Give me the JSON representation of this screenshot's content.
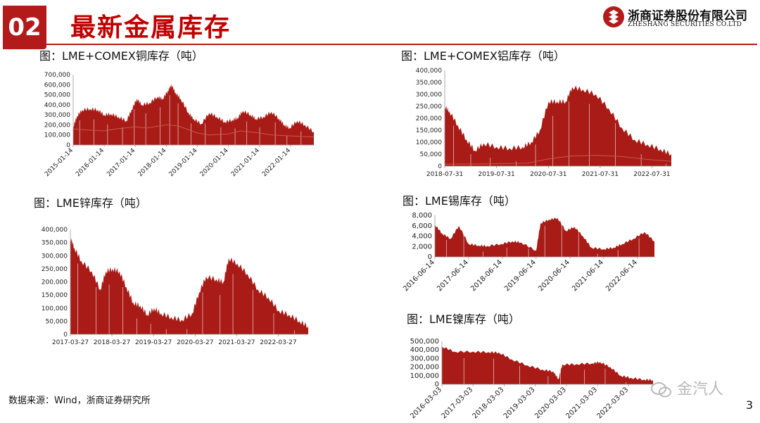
{
  "header": {
    "section_number": "02",
    "title": "最新金属库存",
    "logo_cn": "浙商证券股份有限公司",
    "logo_en": "ZHESHANG SECURITIES CO.LTD"
  },
  "footer": {
    "source": "数据来源：Wind，浙商证券研究所",
    "page_number": "3",
    "watermark": "金汽人"
  },
  "colors": {
    "brand": "#b31b1b",
    "area": "#a91b16",
    "line": "#c75a4a"
  },
  "chart_data": [
    {
      "id": "copper",
      "type": "area",
      "title": "图：LME+COMEX铜库存（吨）",
      "x_start": "2015-01-14",
      "x_end": "2022-10-14",
      "x_ticks": [
        "2015-01-14",
        "2016-01-14",
        "2017-01-14",
        "2018-01-14",
        "2019-01-14",
        "2020-01-14",
        "2021-01-14",
        "2022-01-14"
      ],
      "ylim": [
        0,
        700000
      ],
      "y_ticks": [
        "0",
        "100,000",
        "200,000",
        "300,000",
        "400,000",
        "500,000",
        "600,000",
        "700,000"
      ],
      "series": [
        {
          "style": "area",
          "values": [
            [
              "2015-01-14",
              180000
            ],
            [
              "2015-03-01",
              290000
            ],
            [
              "2015-05-01",
              350000
            ],
            [
              "2015-08-01",
              360000
            ],
            [
              "2015-11-01",
              350000
            ],
            [
              "2016-01-14",
              300000
            ],
            [
              "2016-04-01",
              310000
            ],
            [
              "2016-07-01",
              280000
            ],
            [
              "2016-10-01",
              240000
            ],
            [
              "2016-12-01",
              350000
            ],
            [
              "2017-02-01",
              460000
            ],
            [
              "2017-04-01",
              400000
            ],
            [
              "2017-07-01",
              420000
            ],
            [
              "2017-10-01",
              480000
            ],
            [
              "2017-12-01",
              460000
            ],
            [
              "2018-02-01",
              540000
            ],
            [
              "2018-03-15",
              600000
            ],
            [
              "2018-05-01",
              520000
            ],
            [
              "2018-07-01",
              460000
            ],
            [
              "2018-10-01",
              320000
            ],
            [
              "2018-12-01",
              260000
            ],
            [
              "2019-03-01",
              210000
            ],
            [
              "2019-06-01",
              320000
            ],
            [
              "2019-09-01",
              280000
            ],
            [
              "2019-12-01",
              230000
            ],
            [
              "2020-03-01",
              250000
            ],
            [
              "2020-05-01",
              270000
            ],
            [
              "2020-07-01",
              340000
            ],
            [
              "2020-10-01",
              300000
            ],
            [
              "2020-12-01",
              260000
            ],
            [
              "2021-03-01",
              280000
            ],
            [
              "2021-06-01",
              330000
            ],
            [
              "2021-09-01",
              260000
            ],
            [
              "2021-11-01",
              200000
            ],
            [
              "2022-01-01",
              170000
            ],
            [
              "2022-04-01",
              240000
            ],
            [
              "2022-07-01",
              200000
            ],
            [
              "2022-10-14",
              130000
            ]
          ]
        },
        {
          "style": "line",
          "values": [
            [
              "2015-01-14",
              160000
            ],
            [
              "2015-06-01",
              150000
            ],
            [
              "2016-01-14",
              140000
            ],
            [
              "2016-06-01",
              160000
            ],
            [
              "2017-01-14",
              180000
            ],
            [
              "2017-06-01",
              170000
            ],
            [
              "2018-01-14",
              200000
            ],
            [
              "2018-06-01",
              190000
            ],
            [
              "2019-01-14",
              120000
            ],
            [
              "2019-06-01",
              100000
            ],
            [
              "2020-01-14",
              110000
            ],
            [
              "2020-06-01",
              140000
            ],
            [
              "2021-01-14",
              120000
            ],
            [
              "2021-06-01",
              100000
            ],
            [
              "2022-01-14",
              90000
            ],
            [
              "2022-10-14",
              80000
            ]
          ]
        }
      ]
    },
    {
      "id": "aluminum",
      "type": "area",
      "title": "图：LME+COMEX铝库存（吨）",
      "x_start": "2018-07-31",
      "x_end": "2022-12-15",
      "x_ticks": [
        "2018-07-31",
        "2019-07-31",
        "2020-07-31",
        "2021-07-31",
        "2022-07-31"
      ],
      "ylim": [
        0,
        400000
      ],
      "y_ticks": [
        "0",
        "50,000",
        "100,000",
        "150,000",
        "200,000",
        "250,000",
        "300,000",
        "350,000",
        "400,000"
      ],
      "series": [
        {
          "style": "area",
          "values": [
            [
              "2018-07-31",
              250000
            ],
            [
              "2018-09-01",
              230000
            ],
            [
              "2018-11-01",
              170000
            ],
            [
              "2019-01-01",
              110000
            ],
            [
              "2019-03-01",
              65000
            ],
            [
              "2019-05-01",
              95000
            ],
            [
              "2019-08-01",
              80000
            ],
            [
              "2019-11-01",
              75000
            ],
            [
              "2020-02-01",
              80000
            ],
            [
              "2020-04-01",
              100000
            ],
            [
              "2020-06-01",
              150000
            ],
            [
              "2020-08-01",
              270000
            ],
            [
              "2020-10-01",
              270000
            ],
            [
              "2020-12-01",
              270000
            ],
            [
              "2021-01-15",
              330000
            ],
            [
              "2021-04-01",
              320000
            ],
            [
              "2021-07-01",
              300000
            ],
            [
              "2021-10-01",
              240000
            ],
            [
              "2022-01-01",
              160000
            ],
            [
              "2022-04-01",
              110000
            ],
            [
              "2022-07-01",
              90000
            ],
            [
              "2022-10-01",
              70000
            ],
            [
              "2022-12-15",
              50000
            ]
          ]
        },
        {
          "style": "line",
          "values": [
            [
              "2018-07-31",
              8000
            ],
            [
              "2019-07-31",
              10000
            ],
            [
              "2020-03-01",
              12000
            ],
            [
              "2020-08-01",
              30000
            ],
            [
              "2021-01-01",
              42000
            ],
            [
              "2021-07-01",
              45000
            ],
            [
              "2022-01-01",
              40000
            ],
            [
              "2022-07-01",
              28000
            ],
            [
              "2022-12-15",
              20000
            ]
          ]
        }
      ]
    },
    {
      "id": "zinc",
      "type": "area",
      "title": "图：LME锌库存（吨）",
      "x_start": "2017-03-27",
      "x_end": "2022-12-15",
      "x_ticks": [
        "2017-03-27",
        "2018-03-27",
        "2019-03-27",
        "2020-03-27",
        "2021-03-27",
        "2022-03-27"
      ],
      "ylim": [
        0,
        400000
      ],
      "y_ticks": [
        "0",
        "50,000",
        "100,000",
        "150,000",
        "200,000",
        "250,000",
        "300,000",
        "350,000",
        "400,000"
      ],
      "series": [
        {
          "style": "area",
          "values": [
            [
              "2017-03-27",
              370000
            ],
            [
              "2017-05-01",
              330000
            ],
            [
              "2017-07-01",
              280000
            ],
            [
              "2017-10-01",
              240000
            ],
            [
              "2017-12-15",
              170000
            ],
            [
              "2018-02-01",
              240000
            ],
            [
              "2018-04-01",
              250000
            ],
            [
              "2018-06-01",
              240000
            ],
            [
              "2018-08-01",
              180000
            ],
            [
              "2018-10-01",
              120000
            ],
            [
              "2018-12-01",
              110000
            ],
            [
              "2019-02-01",
              75000
            ],
            [
              "2019-04-01",
              100000
            ],
            [
              "2019-06-01",
              80000
            ],
            [
              "2019-09-01",
              65000
            ],
            [
              "2019-12-01",
              55000
            ],
            [
              "2020-03-01",
              80000
            ],
            [
              "2020-05-01",
              160000
            ],
            [
              "2020-07-01",
              220000
            ],
            [
              "2020-10-01",
              210000
            ],
            [
              "2020-12-01",
              200000
            ],
            [
              "2021-01-15",
              290000
            ],
            [
              "2021-04-01",
              270000
            ],
            [
              "2021-07-01",
              230000
            ],
            [
              "2021-10-01",
              170000
            ],
            [
              "2022-01-01",
              140000
            ],
            [
              "2022-04-01",
              90000
            ],
            [
              "2022-07-01",
              75000
            ],
            [
              "2022-10-01",
              50000
            ],
            [
              "2022-12-15",
              30000
            ]
          ]
        }
      ]
    },
    {
      "id": "tin",
      "type": "area",
      "title": "图：LME锡库存（吨）",
      "x_start": "2016-06-14",
      "x_end": "2022-12-15",
      "x_ticks": [
        "2016-06-14",
        "2017-06-14",
        "2018-06-14",
        "2019-06-14",
        "2020-06-14",
        "2021-06-14",
        "2022-06-14"
      ],
      "ylim": [
        0,
        8000
      ],
      "y_ticks": [
        "0",
        "2,000",
        "4,000",
        "6,000",
        "8,000"
      ],
      "series": [
        {
          "style": "area",
          "values": [
            [
              "2016-06-14",
              6200
            ],
            [
              "2016-09-01",
              4500
            ],
            [
              "2016-12-01",
              3500
            ],
            [
              "2017-03-01",
              6000
            ],
            [
              "2017-06-14",
              2500
            ],
            [
              "2017-10-01",
              2200
            ],
            [
              "2018-01-01",
              2100
            ],
            [
              "2018-06-01",
              2500
            ],
            [
              "2018-10-01",
              3000
            ],
            [
              "2019-01-01",
              2800
            ],
            [
              "2019-06-14",
              1200
            ],
            [
              "2019-08-01",
              6500
            ],
            [
              "2019-11-01",
              7200
            ],
            [
              "2020-02-01",
              7500
            ],
            [
              "2020-05-01",
              5000
            ],
            [
              "2020-08-01",
              5800
            ],
            [
              "2020-11-01",
              4000
            ],
            [
              "2021-02-01",
              1800
            ],
            [
              "2021-06-14",
              1500
            ],
            [
              "2021-10-01",
              1800
            ],
            [
              "2022-01-01",
              2500
            ],
            [
              "2022-05-01",
              3500
            ],
            [
              "2022-09-01",
              4800
            ],
            [
              "2022-12-15",
              3000
            ]
          ]
        }
      ]
    },
    {
      "id": "nickel",
      "type": "area",
      "title": "图：LME镍库存（吨）",
      "x_start": "2016-03-03",
      "x_end": "2022-12-15",
      "x_ticks": [
        "2016-03-03",
        "2017-03-03",
        "2018-03-03",
        "2019-03-03",
        "2020-03-03",
        "2021-03-03",
        "2022-03-03"
      ],
      "ylim": [
        0,
        500000
      ],
      "y_ticks": [
        "0",
        "100,000",
        "200,000",
        "300,000",
        "400,000",
        "500,000"
      ],
      "series": [
        {
          "style": "area",
          "values": [
            [
              "2016-03-03",
              440000
            ],
            [
              "2016-08-01",
              380000
            ],
            [
              "2017-03-03",
              380000
            ],
            [
              "2017-09-01",
              375000
            ],
            [
              "2018-01-01",
              370000
            ],
            [
              "2018-06-01",
              290000
            ],
            [
              "2018-12-01",
              220000
            ],
            [
              "2019-06-01",
              170000
            ],
            [
              "2019-10-01",
              150000
            ],
            [
              "2019-12-01",
              60000
            ],
            [
              "2020-01-15",
              230000
            ],
            [
              "2020-07-01",
              235000
            ],
            [
              "2021-01-01",
              245000
            ],
            [
              "2021-04-01",
              260000
            ],
            [
              "2021-08-01",
              200000
            ],
            [
              "2021-12-01",
              100000
            ],
            [
              "2022-04-01",
              75000
            ],
            [
              "2022-09-01",
              55000
            ],
            [
              "2022-12-15",
              50000
            ]
          ]
        }
      ]
    }
  ]
}
